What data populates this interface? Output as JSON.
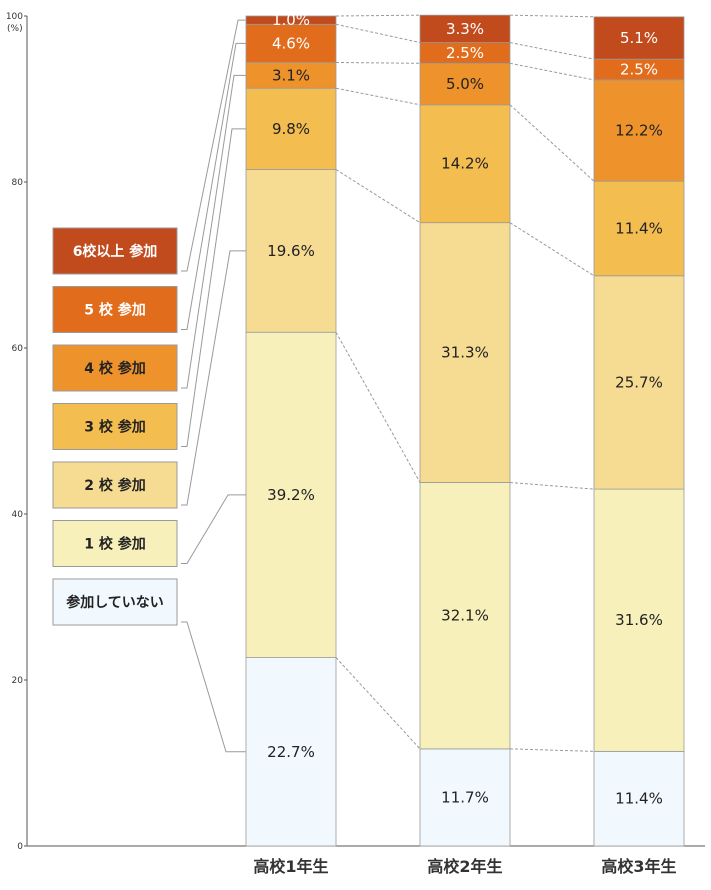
{
  "chart_data": {
    "type": "bar",
    "stacked": true,
    "categories": [
      "高校1年生",
      "高校2年生",
      "高校3年生"
    ],
    "y_unit_label": "(%)",
    "ylim": [
      0,
      100
    ],
    "yticks": [
      "0",
      "20",
      "40",
      "60",
      "80",
      "100"
    ],
    "series": [
      {
        "name": "参加していない",
        "color": "#f2f9fe",
        "text_color": "#222222",
        "values": [
          22.7,
          11.7,
          11.4
        ],
        "labels": [
          "22.7%",
          "11.7%",
          "11.4%"
        ]
      },
      {
        "name": "1 校 参加",
        "color": "#f8f0bb",
        "text_color": "#222222",
        "values": [
          39.2,
          32.1,
          31.6
        ],
        "labels": [
          "39.2%",
          "32.1%",
          "31.6%"
        ]
      },
      {
        "name": "2 校 参加",
        "color": "#f6dc93",
        "text_color": "#222222",
        "values": [
          19.6,
          31.3,
          25.7
        ],
        "labels": [
          "19.6%",
          "31.3%",
          "25.7%"
        ]
      },
      {
        "name": "3 校 参加",
        "color": "#f4bd50",
        "text_color": "#222222",
        "values": [
          9.8,
          14.2,
          11.4
        ],
        "labels": [
          "9.8%",
          "14.2%",
          "11.4%"
        ]
      },
      {
        "name": "4 校 参加",
        "color": "#ee922c",
        "text_color": "#222222",
        "values": [
          3.1,
          5.0,
          12.2
        ],
        "labels": [
          "3.1%",
          "5.0%",
          "12.2%"
        ]
      },
      {
        "name": "5 校 参加",
        "color": "#e16c1c",
        "text_color": "#ffffff",
        "values": [
          4.6,
          2.5,
          2.5
        ],
        "labels": [
          "4.6%",
          "2.5%",
          "2.5%"
        ]
      },
      {
        "name": "6校以上 参加",
        "color": "#c24b1e",
        "text_color": "#ffffff",
        "values": [
          1.0,
          3.3,
          5.1
        ],
        "labels": [
          "1.0%",
          "3.3%",
          "5.1%"
        ]
      }
    ],
    "grid": false,
    "legend_position": "left"
  }
}
